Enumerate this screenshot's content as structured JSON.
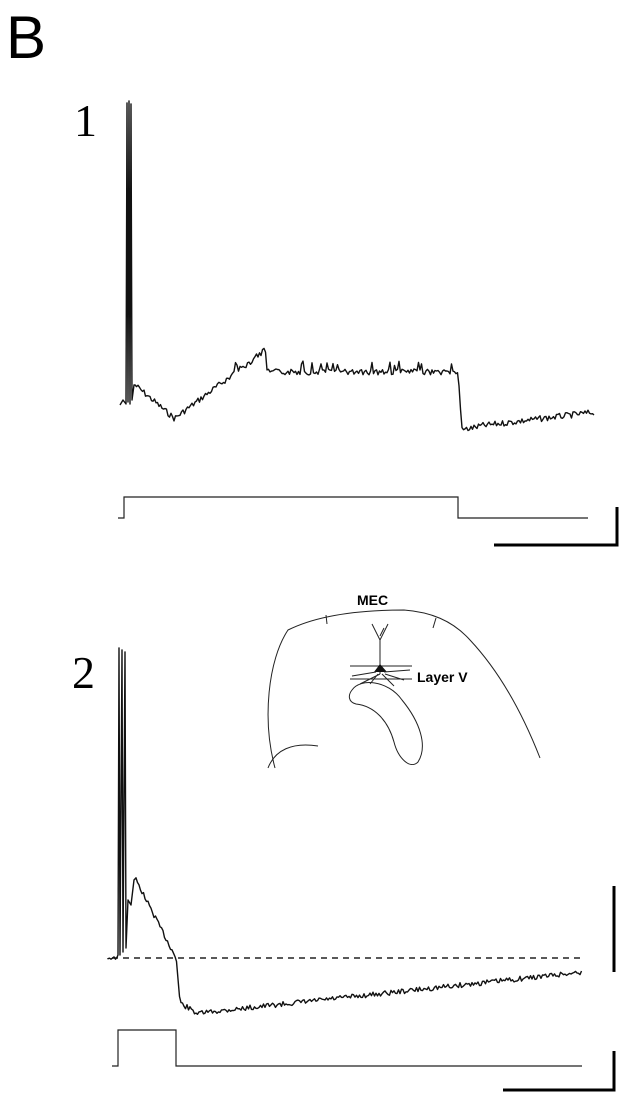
{
  "figure": {
    "panel_letter": "B",
    "subpanels": [
      {
        "number": "1"
      },
      {
        "number": "2"
      }
    ],
    "inset": {
      "region_label": "MEC",
      "layer_label": "Layer V"
    }
  }
}
